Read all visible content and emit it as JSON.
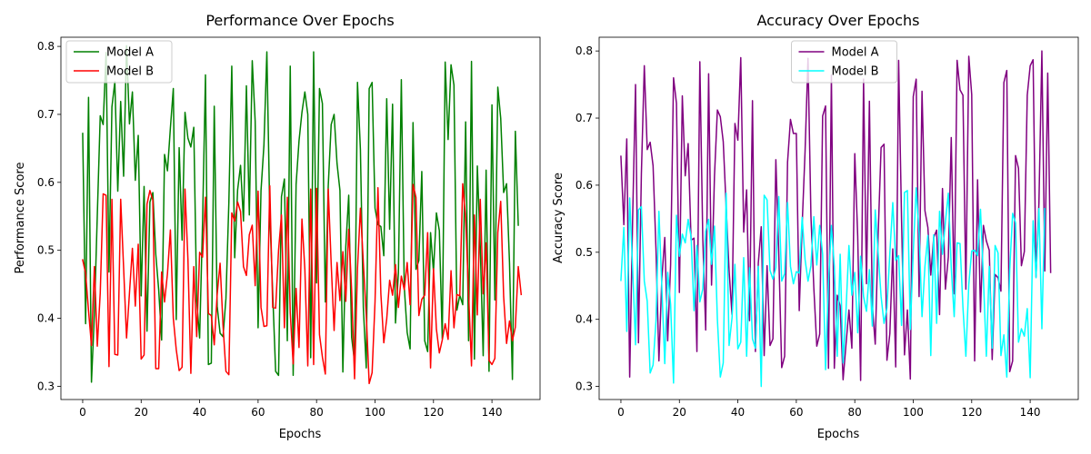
{
  "chart_data": [
    {
      "type": "line",
      "title": "Performance Over Epochs",
      "xlabel": "Epochs",
      "ylabel": "Performance Score",
      "xlim": [
        -7.45,
        156.45
      ],
      "ylim": [
        0.2805,
        0.8135
      ],
      "xticks": [
        0,
        20,
        40,
        60,
        80,
        100,
        120,
        140
      ],
      "yticks": [
        0.3,
        0.4,
        0.5,
        0.6,
        0.7,
        0.8
      ],
      "legend": "top-left",
      "grid": false,
      "series": [
        {
          "name": "Model A",
          "color": "#008000",
          "values": [
            0.672,
            0.392,
            0.725,
            0.306,
            0.406,
            0.552,
            0.698,
            0.685,
            0.791,
            0.468,
            0.711,
            0.748,
            0.587,
            0.719,
            0.609,
            0.801,
            0.686,
            0.733,
            0.603,
            0.669,
            0.433,
            0.594,
            0.381,
            0.571,
            0.585,
            0.494,
            0.442,
            0.368,
            0.641,
            0.617,
            0.68,
            0.738,
            0.398,
            0.651,
            0.515,
            0.703,
            0.665,
            0.652,
            0.681,
            0.426,
            0.371,
            0.54,
            0.758,
            0.332,
            0.334,
            0.712,
            0.418,
            0.378,
            0.373,
            0.429,
            0.57,
            0.771,
            0.489,
            0.589,
            0.625,
            0.543,
            0.742,
            0.552,
            0.779,
            0.69,
            0.386,
            0.588,
            0.655,
            0.792,
            0.554,
            0.437,
            0.322,
            0.316,
            0.579,
            0.605,
            0.367,
            0.771,
            0.316,
            0.597,
            0.661,
            0.703,
            0.733,
            0.7,
            0.342,
            0.792,
            0.452,
            0.738,
            0.716,
            0.424,
            0.595,
            0.685,
            0.7,
            0.628,
            0.588,
            0.321,
            0.505,
            0.581,
            0.372,
            0.336,
            0.747,
            0.648,
            0.416,
            0.327,
            0.738,
            0.747,
            0.562,
            0.538,
            0.535,
            0.492,
            0.723,
            0.531,
            0.715,
            0.393,
            0.467,
            0.751,
            0.446,
            0.379,
            0.355,
            0.688,
            0.472,
            0.485,
            0.616,
            0.367,
            0.351,
            0.526,
            0.469,
            0.555,
            0.529,
            0.37,
            0.777,
            0.663,
            0.773,
            0.743,
            0.412,
            0.434,
            0.42,
            0.689,
            0.367,
            0.778,
            0.34,
            0.624,
            0.505,
            0.345,
            0.618,
            0.322,
            0.714,
            0.427,
            0.74,
            0.694,
            0.585,
            0.598,
            0.482,
            0.31,
            0.675,
            0.537
          ]
        },
        {
          "name": "Model B",
          "color": "#ff0000",
          "values": [
            0.486,
            0.466,
            0.411,
            0.36,
            0.476,
            0.359,
            0.437,
            0.583,
            0.581,
            0.329,
            0.575,
            0.347,
            0.346,
            0.575,
            0.474,
            0.371,
            0.437,
            0.503,
            0.418,
            0.509,
            0.34,
            0.346,
            0.568,
            0.588,
            0.574,
            0.326,
            0.326,
            0.468,
            0.424,
            0.466,
            0.53,
            0.4,
            0.354,
            0.323,
            0.328,
            0.59,
            0.487,
            0.319,
            0.476,
            0.373,
            0.497,
            0.49,
            0.578,
            0.407,
            0.404,
            0.361,
            0.435,
            0.481,
            0.39,
            0.322,
            0.317,
            0.555,
            0.543,
            0.571,
            0.557,
            0.476,
            0.463,
            0.523,
            0.537,
            0.448,
            0.587,
            0.416,
            0.388,
            0.389,
            0.595,
            0.416,
            0.415,
            0.5,
            0.552,
            0.386,
            0.578,
            0.408,
            0.333,
            0.444,
            0.357,
            0.546,
            0.472,
            0.33,
            0.59,
            0.332,
            0.591,
            0.376,
            0.343,
            0.318,
            0.59,
            0.481,
            0.382,
            0.482,
            0.426,
            0.498,
            0.425,
            0.531,
            0.441,
            0.311,
            0.473,
            0.562,
            0.482,
            0.405,
            0.304,
            0.32,
            0.424,
            0.592,
            0.436,
            0.364,
            0.399,
            0.456,
            0.434,
            0.479,
            0.416,
            0.462,
            0.442,
            0.482,
            0.42,
            0.597,
            0.578,
            0.404,
            0.428,
            0.434,
            0.526,
            0.327,
            0.473,
            0.384,
            0.349,
            0.368,
            0.392,
            0.369,
            0.47,
            0.386,
            0.435,
            0.433,
            0.598,
            0.547,
            0.437,
            0.33,
            0.552,
            0.405,
            0.575,
            0.436,
            0.511,
            0.338,
            0.332,
            0.341,
            0.526,
            0.572,
            0.432,
            0.363,
            0.396,
            0.367,
            0.387,
            0.476,
            0.435
          ]
        }
      ]
    },
    {
      "type": "line",
      "title": "Accuracy Over Epochs",
      "xlabel": "Epochs",
      "ylabel": "Accuracy Score",
      "xlim": [
        -7.45,
        156.45
      ],
      "ylim": [
        0.2805,
        0.8205
      ],
      "xticks": [
        0,
        20,
        40,
        60,
        80,
        100,
        120,
        140
      ],
      "yticks": [
        0.3,
        0.4,
        0.5,
        0.6,
        0.7,
        0.8
      ],
      "legend": "top-center",
      "grid": false,
      "series": [
        {
          "name": "Model A",
          "color": "#800080",
          "values": [
            0.643,
            0.541,
            0.669,
            0.314,
            0.549,
            0.75,
            0.365,
            0.617,
            0.778,
            0.653,
            0.664,
            0.629,
            0.504,
            0.338,
            0.461,
            0.522,
            0.368,
            0.482,
            0.76,
            0.722,
            0.44,
            0.733,
            0.614,
            0.662,
            0.518,
            0.521,
            0.352,
            0.784,
            0.521,
            0.384,
            0.766,
            0.451,
            0.613,
            0.712,
            0.702,
            0.665,
            0.567,
            0.473,
            0.407,
            0.692,
            0.667,
            0.79,
            0.53,
            0.593,
            0.398,
            0.726,
            0.352,
            0.484,
            0.538,
            0.346,
            0.48,
            0.361,
            0.371,
            0.638,
            0.498,
            0.328,
            0.345,
            0.634,
            0.698,
            0.677,
            0.677,
            0.413,
            0.541,
            0.651,
            0.789,
            0.554,
            0.446,
            0.36,
            0.378,
            0.703,
            0.718,
            0.327,
            0.764,
            0.327,
            0.436,
            0.42,
            0.31,
            0.363,
            0.414,
            0.357,
            0.647,
            0.524,
            0.309,
            0.758,
            0.453,
            0.725,
            0.421,
            0.363,
            0.527,
            0.656,
            0.661,
            0.339,
            0.379,
            0.505,
            0.329,
            0.786,
            0.548,
            0.347,
            0.414,
            0.311,
            0.732,
            0.758,
            0.434,
            0.74,
            0.562,
            0.537,
            0.466,
            0.522,
            0.533,
            0.407,
            0.595,
            0.445,
            0.493,
            0.671,
            0.438,
            0.786,
            0.742,
            0.734,
            0.445,
            0.792,
            0.735,
            0.338,
            0.608,
            0.411,
            0.54,
            0.517,
            0.503,
            0.34,
            0.467,
            0.462,
            0.442,
            0.753,
            0.771,
            0.322,
            0.338,
            0.644,
            0.625,
            0.48,
            0.501,
            0.734,
            0.778,
            0.787,
            0.463,
            0.574,
            0.8,
            0.472,
            0.767,
            0.47
          ]
        },
        {
          "name": "Model B",
          "color": "#00ffff",
          "values": [
            0.458,
            0.537,
            0.382,
            0.581,
            0.477,
            0.362,
            0.563,
            0.568,
            0.457,
            0.427,
            0.32,
            0.332,
            0.398,
            0.561,
            0.448,
            0.334,
            0.47,
            0.422,
            0.305,
            0.555,
            0.494,
            0.527,
            0.514,
            0.549,
            0.523,
            0.413,
            0.51,
            0.426,
            0.445,
            0.531,
            0.549,
            0.482,
            0.539,
            0.4,
            0.314,
            0.335,
            0.588,
            0.361,
            0.402,
            0.482,
            0.356,
            0.366,
            0.492,
            0.345,
            0.477,
            0.371,
            0.357,
            0.479,
            0.3,
            0.585,
            0.578,
            0.473,
            0.46,
            0.477,
            0.583,
            0.457,
            0.468,
            0.574,
            0.479,
            0.453,
            0.471,
            0.469,
            0.552,
            0.489,
            0.457,
            0.48,
            0.553,
            0.481,
            0.54,
            0.497,
            0.325,
            0.455,
            0.54,
            0.479,
            0.345,
            0.497,
            0.335,
            0.414,
            0.51,
            0.436,
            0.47,
            0.38,
            0.494,
            0.434,
            0.412,
            0.474,
            0.39,
            0.563,
            0.498,
            0.434,
            0.394,
            0.417,
            0.499,
            0.574,
            0.488,
            0.495,
            0.391,
            0.589,
            0.592,
            0.385,
            0.5,
            0.596,
            0.529,
            0.404,
            0.479,
            0.525,
            0.346,
            0.526,
            0.394,
            0.561,
            0.497,
            0.545,
            0.588,
            0.477,
            0.404,
            0.514,
            0.513,
            0.418,
            0.345,
            0.452,
            0.502,
            0.503,
            0.495,
            0.564,
            0.461,
            0.345,
            0.479,
            0.357,
            0.51,
            0.499,
            0.346,
            0.377,
            0.314,
            0.474,
            0.558,
            0.544,
            0.366,
            0.386,
            0.375,
            0.416,
            0.313,
            0.547,
            0.462,
            0.565,
            0.386,
            0.565
          ]
        }
      ]
    }
  ]
}
